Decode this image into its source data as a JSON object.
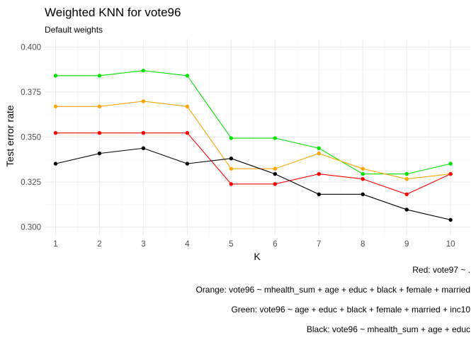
{
  "chart_data": {
    "type": "line",
    "title": "Weighted KNN for vote96",
    "subtitle": "Default weights",
    "xlabel": "K",
    "ylabel": "Test error rate",
    "x": [
      1,
      2,
      3,
      4,
      5,
      6,
      7,
      8,
      9,
      10
    ],
    "xlim": [
      0.75,
      10.45
    ],
    "ylim": [
      0.2955,
      0.4045
    ],
    "yticks": [
      0.3,
      0.325,
      0.35,
      0.375,
      0.4
    ],
    "ytick_labels": [
      "0.300",
      "0.325",
      "0.350",
      "0.375",
      "0.400"
    ],
    "grid": true,
    "legend": "none",
    "series": [
      {
        "color": "#00E400",
        "values": [
          0.3841,
          0.3841,
          0.3869,
          0.3841,
          0.3494,
          0.3494,
          0.3438,
          0.3295,
          0.3295,
          0.3352
        ]
      },
      {
        "color": "#FFA500",
        "values": [
          0.367,
          0.367,
          0.3699,
          0.367,
          0.3324,
          0.3324,
          0.3409,
          0.3324,
          0.3267,
          0.3295
        ]
      },
      {
        "color": "#FF0000",
        "values": [
          0.3523,
          0.3523,
          0.3523,
          0.3523,
          0.3239,
          0.3239,
          0.3295,
          0.3267,
          0.3182,
          0.3295
        ]
      },
      {
        "color": "#000000",
        "values": [
          0.3352,
          0.3409,
          0.3438,
          0.3352,
          0.3381,
          0.3295,
          0.3182,
          0.3182,
          0.3097,
          0.304
        ]
      }
    ],
    "captions": [
      "Red: vote97 ~ .",
      "Orange: vote96 ~ mhealth_sum + age + educ + black + female + married",
      "Green: vote96 ~ age + educ + black + female + married + inc10",
      "Black: vote96 ~ mhealth_sum + age + educ"
    ]
  }
}
